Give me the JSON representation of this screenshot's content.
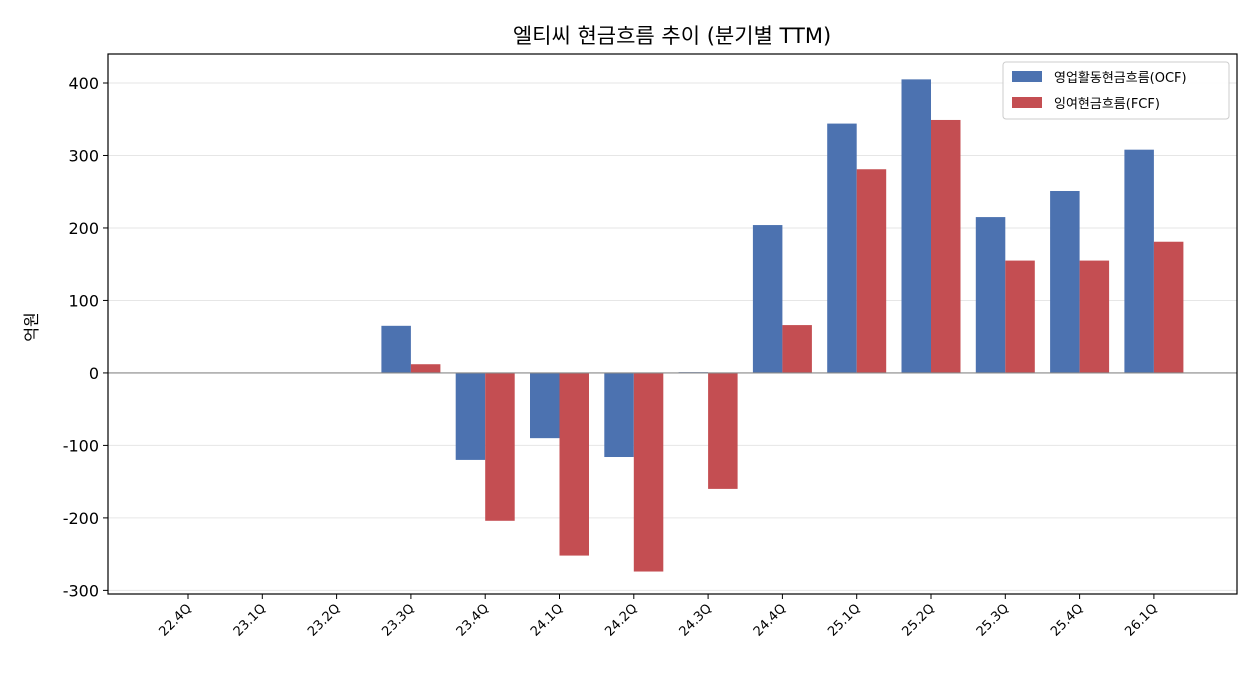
{
  "chart_data": {
    "type": "bar",
    "title": "엘티씨 현금흐름 추이 (분기별 TTM)",
    "xlabel": "",
    "ylabel": "억원",
    "categories": [
      "22.4Q",
      "23.1Q",
      "23.2Q",
      "23.3Q",
      "23.4Q",
      "24.1Q",
      "24.2Q",
      "24.3Q",
      "24.4Q",
      "25.1Q",
      "25.2Q",
      "25.3Q",
      "25.4Q",
      "26.1Q"
    ],
    "series": [
      {
        "name": "영업활동현금흐름(OCF)",
        "color": "#4c72b0",
        "values": [
          null,
          null,
          null,
          65,
          -120,
          -90,
          -116,
          1,
          204,
          344,
          405,
          215,
          251,
          308
        ]
      },
      {
        "name": "잉여현금흐름(FCF)",
        "color": "#c44e52",
        "values": [
          null,
          null,
          null,
          12,
          -204,
          -252,
          -274,
          -160,
          66,
          281,
          349,
          155,
          155,
          181
        ]
      }
    ],
    "ylim": [
      -305,
      440
    ],
    "yticks": [
      -300,
      -200,
      -100,
      0,
      100,
      200,
      300,
      400
    ],
    "ytick_labels": [
      "-300",
      "-200",
      "-100",
      "0",
      "100",
      "200",
      "300",
      "400"
    ],
    "grid": "horizontal",
    "legend_position": "top-right"
  }
}
